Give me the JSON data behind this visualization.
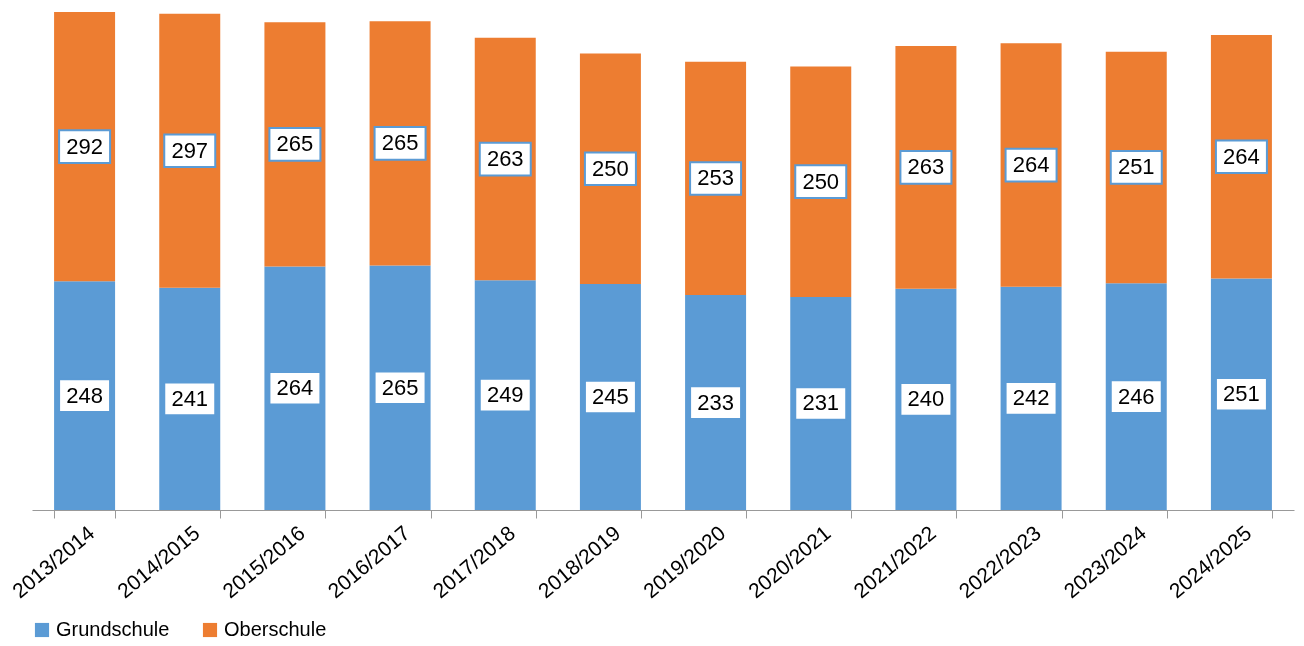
{
  "chart_data": {
    "type": "bar",
    "stacked": true,
    "data_labels": true,
    "legend": "bottom",
    "categories": [
      "2013/2014",
      "2014/2015",
      "2015/2016",
      "2016/2017",
      "2017/2018",
      "2018/2019",
      "2019/2020",
      "2020/2021",
      "2021/2022",
      "2022/2023",
      "2023/2024",
      "2024/2025"
    ],
    "series": [
      {
        "name": "Grundschule",
        "color": "#5b9bd5",
        "values": [
          248,
          241,
          264,
          265,
          249,
          245,
          233,
          231,
          240,
          242,
          246,
          251
        ]
      },
      {
        "name": "Oberschule",
        "color": "#ed7d31",
        "values": [
          292,
          297,
          265,
          265,
          263,
          250,
          253,
          250,
          263,
          264,
          251,
          264
        ]
      }
    ]
  }
}
